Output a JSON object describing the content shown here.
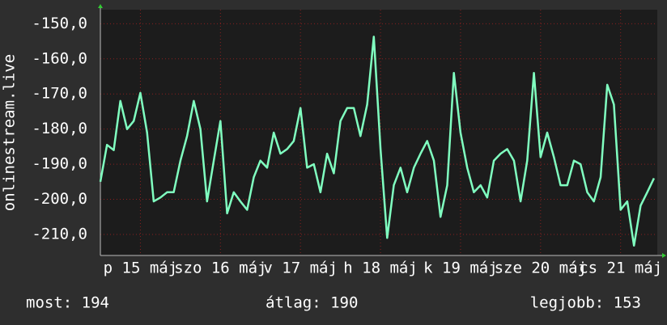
{
  "chart_data": {
    "type": "line",
    "y_label": "onlinestream.live",
    "x": [
      0,
      2,
      4,
      6,
      8,
      10,
      12,
      14,
      16,
      18,
      20,
      22,
      24,
      26,
      28,
      30,
      32,
      34,
      36,
      38,
      40,
      42,
      44,
      46,
      48,
      50,
      52,
      54,
      56,
      58,
      60,
      62,
      64,
      66,
      68,
      70,
      72,
      74,
      76,
      78,
      80,
      82,
      84,
      86,
      88,
      90,
      92,
      94,
      96,
      98,
      100,
      102,
      104,
      106,
      108,
      110,
      112,
      114,
      116,
      118,
      120,
      122,
      124,
      126,
      128,
      130,
      132,
      134,
      136,
      138,
      140,
      142,
      144,
      146,
      148,
      150,
      152,
      154,
      156,
      158,
      160,
      162,
      164,
      166
    ],
    "series": [
      {
        "name": "onlinestream.live",
        "color": "#80ffc0",
        "values": [
          -195,
          -184.5,
          -186,
          -172,
          -180,
          -177.7,
          -169.7,
          -181,
          -200.6,
          -199.5,
          -198,
          -198,
          -189,
          -182,
          -172,
          -180,
          -200.6,
          -189,
          -177.7,
          -204,
          -198,
          -200.6,
          -203,
          -193.7,
          -189,
          -191,
          -181,
          -187,
          -185.7,
          -183.4,
          -174,
          -191,
          -190,
          -198,
          -187,
          -192.6,
          -177.7,
          -174,
          -174,
          -182,
          -173,
          -153.7,
          -185.7,
          -211,
          -196,
          -191,
          -198,
          -191,
          -187,
          -183.4,
          -189,
          -205,
          -196,
          -164,
          -181,
          -191,
          -198,
          -196,
          -199.5,
          -189,
          -187,
          -185.7,
          -189,
          -200.6,
          -189,
          -164,
          -188,
          -181,
          -188,
          -196,
          -196,
          -189,
          -190,
          -198,
          -200.6,
          -193.7,
          -167.4,
          -173,
          -203,
          -200.6,
          -213.2,
          -201.8,
          -198,
          -194
        ]
      }
    ],
    "xlim": [
      0,
      167
    ],
    "xticks": [
      {
        "value": 12,
        "label": "p 15 máj"
      },
      {
        "value": 36,
        "label": "szo 16 máj"
      },
      {
        "value": 60,
        "label": "v 17 máj"
      },
      {
        "value": 84,
        "label": "h 18 máj"
      },
      {
        "value": 108,
        "label": "k 19 máj"
      },
      {
        "value": 132,
        "label": "sze 20 máj"
      },
      {
        "value": 156,
        "label": "cs 21 máj"
      }
    ],
    "ylim": [
      -216,
      -146
    ],
    "yticks": [
      {
        "value": -150,
        "label": "-150,0"
      },
      {
        "value": -160,
        "label": "-160,0"
      },
      {
        "value": -170,
        "label": "-170,0"
      },
      {
        "value": -180,
        "label": "-180,0"
      },
      {
        "value": -190,
        "label": "-190,0"
      },
      {
        "value": -200,
        "label": "-200,0"
      },
      {
        "value": -210,
        "label": "-210,0"
      }
    ],
    "grid": true,
    "footer": [
      "most: 194",
      "átlag: 190",
      "legjobb: 153"
    ]
  }
}
